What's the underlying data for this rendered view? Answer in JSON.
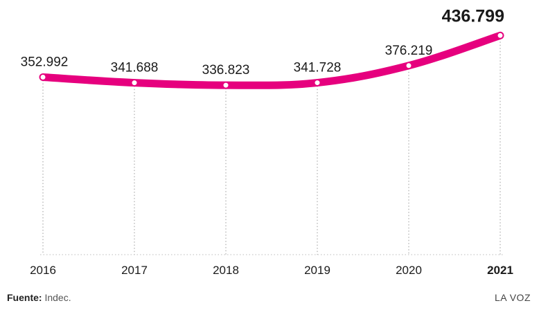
{
  "chart_data": {
    "type": "line",
    "title": "",
    "xlabel": "",
    "ylabel": "",
    "x": [
      "2016",
      "2017",
      "2018",
      "2019",
      "2020",
      "2021"
    ],
    "values": [
      352992,
      341688,
      336823,
      341728,
      376219,
      436799
    ],
    "value_labels": [
      "352.992",
      "341.688",
      "336.823",
      "341.728",
      "376.219",
      "436.799"
    ],
    "highlight_last": true,
    "ylim": [
      0,
      440000
    ],
    "grid": "vertical dotted",
    "legend": "none",
    "line_color": "#e6007e",
    "point_color": "#ffffff"
  },
  "footer": {
    "source_label": "Fuente:",
    "source_value": "Indec.",
    "brand": "LA VOZ"
  }
}
